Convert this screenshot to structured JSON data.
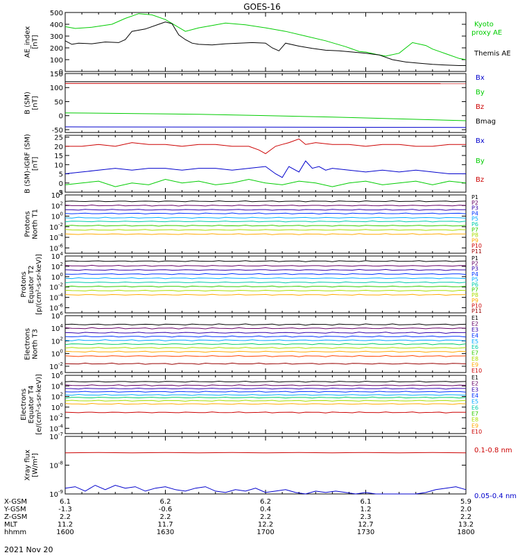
{
  "title": "GOES-16",
  "date": "2021 Nov 20",
  "chart_data": [
    {
      "type": "line",
      "id": "ae",
      "ylabel": [
        "AE_index",
        "[nT]"
      ],
      "ylim": [
        0,
        500
      ],
      "yticks": [
        "0",
        "100",
        "200",
        "300",
        "400",
        "500"
      ],
      "xlim": [
        0,
        120
      ],
      "series": [
        {
          "name": "Kyoto proxy AE",
          "color": "#00cc00",
          "x": [
            0,
            3,
            8,
            14,
            18,
            22,
            26,
            30,
            33,
            36,
            40,
            44,
            48,
            54,
            60,
            66,
            72,
            78,
            84,
            88,
            90,
            93,
            96,
            100,
            104,
            108,
            110,
            114,
            118,
            120
          ],
          "y": [
            380,
            365,
            375,
            400,
            450,
            490,
            480,
            440,
            390,
            340,
            370,
            390,
            410,
            395,
            370,
            340,
            300,
            260,
            210,
            170,
            165,
            145,
            130,
            155,
            245,
            220,
            190,
            150,
            110,
            100
          ]
        },
        {
          "name": "Themis AE",
          "color": "#000000",
          "x": [
            0,
            2,
            4,
            8,
            12,
            16,
            18,
            20,
            24,
            28,
            30,
            32,
            34,
            36,
            38,
            40,
            44,
            48,
            52,
            56,
            60,
            62,
            64,
            66,
            70,
            74,
            78,
            82,
            86,
            90,
            94,
            98,
            102,
            106,
            110,
            114,
            118,
            120
          ],
          "y": [
            260,
            230,
            240,
            235,
            250,
            245,
            270,
            340,
            360,
            400,
            420,
            405,
            310,
            270,
            240,
            230,
            225,
            235,
            240,
            245,
            240,
            200,
            175,
            240,
            215,
            195,
            180,
            175,
            165,
            155,
            140,
            100,
            80,
            70,
            60,
            55,
            50,
            50
          ]
        }
      ],
      "legend": [
        "Kyoto",
        "proxy AE",
        "Themis AE"
      ]
    },
    {
      "type": "line",
      "id": "bsm",
      "ylabel": [
        "B (SM)",
        "[nT]"
      ],
      "ylim": [
        -60,
        150
      ],
      "yticks": [
        "-50",
        "0",
        "50",
        "100",
        "150"
      ],
      "xlim": [
        0,
        120
      ],
      "series": [
        {
          "name": "Bx",
          "color": "#0000cc",
          "x": [
            0,
            120
          ],
          "y": [
            -40,
            -42
          ]
        },
        {
          "name": "By",
          "color": "#00cc00",
          "x": [
            0,
            40,
            80,
            120
          ],
          "y": [
            10,
            5,
            -5,
            -18
          ]
        },
        {
          "name": "Bz",
          "color": "#cc0000",
          "x": [
            0,
            120
          ],
          "y": [
            115,
            114
          ]
        },
        {
          "name": "Bmag",
          "color": "#000000",
          "x": [
            0,
            120
          ],
          "y": [
            121,
            121
          ]
        }
      ],
      "legend": [
        "Bx",
        "By",
        "Bz",
        "Bmag"
      ]
    },
    {
      "type": "line",
      "id": "bdiff",
      "ylabel": [
        "B (SM)-IGRF (SM)",
        "[nT]"
      ],
      "ylim": [
        -5,
        26
      ],
      "yticks": [
        "-5",
        "0",
        "5",
        "10",
        "15",
        "20",
        "25"
      ],
      "xlim": [
        0,
        120
      ],
      "series": [
        {
          "name": "Bx",
          "color": "#0000cc",
          "x": [
            0,
            5,
            10,
            15,
            20,
            25,
            30,
            35,
            40,
            45,
            50,
            55,
            60,
            63,
            65,
            67,
            70,
            72,
            74,
            76,
            78,
            80,
            85,
            90,
            95,
            100,
            105,
            110,
            115,
            120
          ],
          "y": [
            5,
            6,
            7,
            8,
            7,
            8,
            8,
            7,
            8,
            8,
            7,
            8,
            9,
            5,
            3,
            9,
            6,
            12,
            8,
            9,
            7,
            8,
            7,
            6,
            7,
            6,
            7,
            6,
            5,
            5
          ]
        },
        {
          "name": "By",
          "color": "#00cc00",
          "x": [
            0,
            5,
            10,
            15,
            20,
            25,
            30,
            35,
            40,
            45,
            50,
            55,
            60,
            65,
            70,
            75,
            80,
            85,
            90,
            95,
            100,
            105,
            110,
            115,
            120
          ],
          "y": [
            -1,
            0,
            1,
            -2,
            0,
            -1,
            2,
            0,
            1,
            -1,
            0,
            2,
            0,
            -1,
            1,
            0,
            -2,
            0,
            1,
            -1,
            0,
            1,
            -1,
            1,
            0
          ]
        },
        {
          "name": "Bz",
          "color": "#cc0000",
          "x": [
            0,
            5,
            10,
            15,
            20,
            25,
            30,
            35,
            40,
            45,
            50,
            55,
            58,
            60,
            63,
            65,
            67,
            70,
            72,
            75,
            80,
            85,
            90,
            95,
            100,
            105,
            110,
            115,
            120
          ],
          "y": [
            20,
            20,
            21,
            20,
            22,
            21,
            21,
            20,
            21,
            21,
            20,
            20,
            18,
            16,
            20,
            21,
            22,
            24,
            21,
            22,
            21,
            21,
            20,
            21,
            21,
            20,
            20,
            21,
            21
          ]
        }
      ],
      "legend": [
        "Bx",
        "By",
        "Bz"
      ]
    },
    {
      "type": "line",
      "id": "protons-north",
      "ylabel": [
        "Protons",
        "North T1"
      ],
      "yscale": "log",
      "ylim": [
        -7,
        4
      ],
      "yticks": [
        "10^4",
        "10^2",
        "10^0",
        "10^-2",
        "10^-4",
        "10^-6"
      ],
      "xlim": [
        0,
        120
      ],
      "series": [
        {
          "name": "P1",
          "color": "#000000",
          "logy": 2.8
        },
        {
          "name": "P2",
          "color": "#660066",
          "logy": 2.0
        },
        {
          "name": "P3",
          "color": "#3300aa",
          "logy": 1.2
        },
        {
          "name": "P4",
          "color": "#0033ff",
          "logy": 0.5
        },
        {
          "name": "P5",
          "color": "#00aaff",
          "logy": -0.3
        },
        {
          "name": "P6",
          "color": "#00ccaa",
          "logy": -1.0
        },
        {
          "name": "P7",
          "color": "#33cc00",
          "logy": -1.8
        },
        {
          "name": "P8",
          "color": "#aadd00",
          "logy": -2.6
        },
        {
          "name": "P9",
          "color": "#ffaa00",
          "logy": -3.4
        }
      ],
      "legend": [
        "P1",
        "P2",
        "P3",
        "P4",
        "P5",
        "P6",
        "P7",
        "P8",
        "P9",
        "P10",
        "P11"
      ]
    },
    {
      "type": "line",
      "id": "protons-equator",
      "ylabel": [
        "Protons",
        "Equator T2",
        "[p/(cm²-s-sr-keV)]"
      ],
      "yscale": "log",
      "ylim": [
        -7,
        4
      ],
      "yticks": [
        "10^4",
        "10^2",
        "10^0",
        "10^-2",
        "10^-4",
        "10^-6"
      ],
      "xlim": [
        0,
        120
      ],
      "series": [
        {
          "name": "P1",
          "color": "#000000",
          "logy": 3.0
        },
        {
          "name": "P2",
          "color": "#660066",
          "logy": 2.1
        },
        {
          "name": "P3",
          "color": "#3300aa",
          "logy": 1.3
        },
        {
          "name": "P4",
          "color": "#0033ff",
          "logy": 0.5
        },
        {
          "name": "P5",
          "color": "#00aaff",
          "logy": -0.3
        },
        {
          "name": "P6",
          "color": "#00ccaa",
          "logy": -1.1
        },
        {
          "name": "P7",
          "color": "#33cc00",
          "logy": -1.9
        },
        {
          "name": "P8",
          "color": "#aadd00",
          "logy": -2.7
        },
        {
          "name": "P9",
          "color": "#ffaa00",
          "logy": -3.5
        }
      ],
      "legend": [
        "P1",
        "P2",
        "P3",
        "P4",
        "P5",
        "P6",
        "P7",
        "P8",
        "P9",
        "P10",
        "P11"
      ]
    },
    {
      "type": "line",
      "id": "electrons-north",
      "ylabel": [
        "Electrons",
        "North T3"
      ],
      "yscale": "log",
      "ylim": [
        -3,
        6
      ],
      "yticks": [
        "10^6",
        "10^4",
        "10^2",
        "10^0",
        "10^-2"
      ],
      "xlim": [
        0,
        120
      ],
      "series": [
        {
          "name": "E1",
          "color": "#000000",
          "logy": 4.6
        },
        {
          "name": "E2",
          "color": "#660066",
          "logy": 4.0
        },
        {
          "name": "E3",
          "color": "#3300aa",
          "logy": 3.3
        },
        {
          "name": "E4",
          "color": "#0033ff",
          "logy": 2.7
        },
        {
          "name": "E5",
          "color": "#00aaff",
          "logy": 2.1
        },
        {
          "name": "E6",
          "color": "#00cc66",
          "logy": 1.5
        },
        {
          "name": "E7",
          "color": "#aadd00",
          "logy": 0.9
        },
        {
          "name": "E8",
          "color": "#ffaa00",
          "logy": 0.3
        },
        {
          "name": "E9",
          "color": "#ff4400",
          "logy": -0.4
        },
        {
          "name": "E10",
          "color": "#990000",
          "logy": -1.6
        }
      ],
      "legend": [
        "E1",
        "E2",
        "E3",
        "E4",
        "E5",
        "E6",
        "E7",
        "E8",
        "E9",
        "E10"
      ]
    },
    {
      "type": "line",
      "id": "electrons-equator",
      "ylabel": [
        "Electrons",
        "Equator T4",
        "[e/(cm²-s-sr-keV)]"
      ],
      "yscale": "log",
      "ylim": [
        -5,
        6
      ],
      "yticks": [
        "10^6",
        "10^4",
        "10^2",
        "10^0",
        "10^-2",
        "10^-4"
      ],
      "xlim": [
        0,
        120
      ],
      "series": [
        {
          "name": "E1",
          "color": "#000000",
          "logy": 4.8
        },
        {
          "name": "E2",
          "color": "#660066",
          "logy": 4.1
        },
        {
          "name": "E3",
          "color": "#3300aa",
          "logy": 3.5
        },
        {
          "name": "E4",
          "color": "#0033ff",
          "logy": 2.9
        },
        {
          "name": "E5",
          "color": "#00aaff",
          "logy": 2.3
        },
        {
          "name": "E6",
          "color": "#00cc66",
          "logy": 1.8
        },
        {
          "name": "E7",
          "color": "#aadd00",
          "logy": 1.2
        },
        {
          "name": "E8",
          "color": "#ffaa00",
          "logy": 0.6
        },
        {
          "name": "E9",
          "color": "#cc0000",
          "logy": -1.0
        }
      ],
      "legend": [
        "E1",
        "E2",
        "E3",
        "E4",
        "E5",
        "E6",
        "E7",
        "E8",
        "E9",
        "E10"
      ]
    },
    {
      "type": "line",
      "id": "xray",
      "ylabel": [
        "Xray flux",
        "[W/m²]"
      ],
      "yscale": "log",
      "ylim": [
        -9,
        -7
      ],
      "yticks": [
        "10^-7",
        "10^-8",
        "10^-9"
      ],
      "xlim": [
        0,
        120
      ],
      "series": [
        {
          "name": "0.1-0.8 nm",
          "color": "#cc0000",
          "x": [
            0,
            10,
            20,
            30,
            40,
            50,
            60,
            70,
            80,
            90,
            100,
            110,
            120
          ],
          "y": [
            -7.57,
            -7.56,
            -7.57,
            -7.56,
            -7.57,
            -7.56,
            -7.57,
            -7.56,
            -7.57,
            -7.56,
            -7.57,
            -7.56,
            -7.57
          ]
        },
        {
          "name": "0.05-0.4 nm",
          "color": "#0000cc",
          "x": [
            0,
            3,
            6,
            9,
            12,
            15,
            18,
            21,
            24,
            27,
            30,
            33,
            36,
            39,
            42,
            45,
            48,
            51,
            54,
            57,
            60,
            63,
            66,
            69,
            72,
            75,
            78,
            81,
            84,
            87,
            90,
            93,
            96,
            99,
            102,
            105,
            108,
            111,
            114,
            117,
            120
          ],
          "y": [
            -8.8,
            -8.75,
            -8.9,
            -8.7,
            -8.85,
            -8.7,
            -8.8,
            -8.75,
            -8.9,
            -8.8,
            -8.75,
            -8.85,
            -8.9,
            -8.8,
            -8.75,
            -8.9,
            -8.95,
            -8.85,
            -8.9,
            -8.8,
            -8.95,
            -8.9,
            -8.85,
            -8.95,
            -9.0,
            -8.9,
            -8.95,
            -8.9,
            -8.95,
            -9.0,
            -8.95,
            -9.0,
            -9.0,
            -9.0,
            -9.0,
            -9.0,
            -8.95,
            -8.85,
            -8.8,
            -8.75,
            -8.85
          ]
        }
      ],
      "legend": [
        "0.1-0.8 nm",
        "0.05-0.4 nm"
      ]
    }
  ],
  "xaxis": {
    "row_labels": [
      "X-GSM",
      "Y-GSM",
      "Z-GSM",
      "MLT",
      "hhmm"
    ],
    "positions": [
      0,
      30,
      60,
      90,
      120
    ],
    "columns": [
      [
        "6.1",
        "-1.3",
        "2.2",
        "11.2",
        "1600"
      ],
      [
        "6.2",
        "-0.6",
        "2.2",
        "11.7",
        "1630"
      ],
      [
        "6.2",
        "0.4",
        "2.2",
        "12.2",
        "1700"
      ],
      [
        "6.1",
        "1.2",
        "2.3",
        "12.7",
        "1730"
      ],
      [
        "5.9",
        "2.0",
        "2.2",
        "13.2",
        "1800"
      ]
    ]
  }
}
